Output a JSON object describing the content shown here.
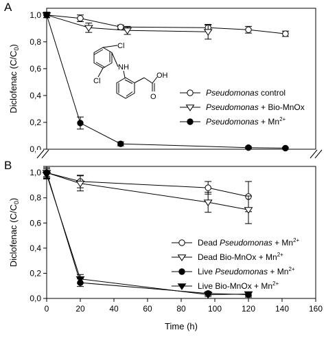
{
  "chart_data": [
    {
      "type": "line",
      "panel_label": "A",
      "ylabel": "Diclofenac (C/C0)",
      "ylabel_parts": {
        "main": "Diclofenac (C/C",
        "sub": "0",
        "end": ")"
      },
      "ylim": [
        0,
        1.05
      ],
      "xlim": [
        0,
        160
      ],
      "yticks": [
        0.0,
        0.2,
        0.4,
        0.6,
        0.8,
        1.0
      ],
      "ytick_labels": [
        "0,0",
        "0,2",
        "0,4",
        "0,6",
        "0,8",
        "1,0"
      ],
      "legend_position": "center-right",
      "inset": "diclofenac structure (Cl, NH, Cl, OH, O)",
      "inset_labels": {
        "cl1": "Cl",
        "nh": "NH",
        "cl2": "Cl",
        "oh": "OH",
        "o": "O"
      },
      "series": [
        {
          "name": "Pseudomonas control",
          "label_parts": {
            "italic": "Pseudomonas",
            "rest": " control"
          },
          "marker": "open-circle",
          "x": [
            0,
            20,
            44,
            96,
            120,
            142
          ],
          "y": [
            1.0,
            0.975,
            0.91,
            0.905,
            0.89,
            0.86
          ],
          "err": [
            0.02,
            0.025,
            0.015,
            0.02,
            0.025,
            0.02
          ]
        },
        {
          "name": "Pseudomonas + Bio-MnOx",
          "label_parts": {
            "italic": "Pseudomonas",
            "rest": " + Bio-MnOx"
          },
          "marker": "open-triangle-down",
          "x": [
            0,
            25,
            48,
            96
          ],
          "y": [
            1.0,
            0.905,
            0.885,
            0.875
          ],
          "err": [
            0.02,
            0.035,
            0.03,
            0.055
          ]
        },
        {
          "name": "Pseudomonas + Mn2+",
          "label_parts": {
            "italic": "Pseudomonas",
            "rest": " + Mn",
            "sup": "2+"
          },
          "marker": "filled-circle",
          "x": [
            0,
            20,
            44,
            120,
            142
          ],
          "y": [
            1.0,
            0.195,
            0.04,
            0.012,
            0.008
          ],
          "err": [
            0.02,
            0.045,
            0.015,
            0.008,
            0.006
          ]
        }
      ]
    },
    {
      "type": "line",
      "panel_label": "B",
      "xlabel": "Time (h)",
      "ylabel": "Diclofenac (C/C0)",
      "ylabel_parts": {
        "main": "Diclofenac (C/C",
        "sub": "0",
        "end": ")"
      },
      "ylim": [
        0,
        1.05
      ],
      "xlim": [
        0,
        160
      ],
      "xticks": [
        0,
        20,
        40,
        60,
        80,
        100,
        120,
        140,
        160
      ],
      "xtick_labels": [
        "0",
        "20",
        "40",
        "60",
        "80",
        "100",
        "120",
        "140",
        "160"
      ],
      "yticks": [
        0.0,
        0.2,
        0.4,
        0.6,
        0.8,
        1.0
      ],
      "ytick_labels": [
        "0,0",
        "0,2",
        "0,4",
        "0,6",
        "0,8",
        "1,0"
      ],
      "legend_position": "right",
      "series": [
        {
          "name": "Dead Pseudomonas + Mn2+",
          "label_parts": {
            "pre": "Dead ",
            "italic": "Pseudomonas",
            "rest": " + Mn",
            "sup": "2+"
          },
          "marker": "open-circle",
          "x": [
            0,
            20,
            96,
            120
          ],
          "y": [
            1.0,
            0.93,
            0.88,
            0.81
          ],
          "err": [
            0.04,
            0.05,
            0.05,
            0.12
          ]
        },
        {
          "name": "Dead Bio-MnOx + Mn2+",
          "label_parts": {
            "pre": "Dead Bio-MnOx + Mn",
            "sup": "2+"
          },
          "marker": "open-triangle-down",
          "x": [
            0,
            20,
            96,
            120
          ],
          "y": [
            1.0,
            0.915,
            0.765,
            0.705
          ],
          "err": [
            0.05,
            0.06,
            0.08,
            0.11
          ]
        },
        {
          "name": "Live Pseudomonas + Mn2+",
          "label_parts": {
            "pre": "Live ",
            "italic": "Pseudomonas",
            "rest": " + Mn",
            "sup": "2+"
          },
          "marker": "filled-circle",
          "x": [
            0,
            20,
            96,
            120
          ],
          "y": [
            1.0,
            0.125,
            0.04,
            0.03
          ],
          "err": [
            0.03,
            0.03,
            0.015,
            0.02
          ]
        },
        {
          "name": "Live Bio-MnOx + Mn2+",
          "label_parts": {
            "pre": "Live Bio-MnOx + Mn",
            "sup": "2+"
          },
          "marker": "filled-triangle-down",
          "x": [
            0,
            20,
            96,
            120
          ],
          "y": [
            0.985,
            0.155,
            0.03,
            0.035
          ],
          "err": [
            0.03,
            0.035,
            0.015,
            0.015
          ]
        }
      ]
    }
  ]
}
